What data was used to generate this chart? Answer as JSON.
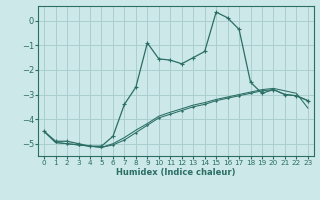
{
  "xlabel": "Humidex (Indice chaleur)",
  "bg_color": "#cce8e8",
  "grid_color": "#aacece",
  "line_color": "#2a6e64",
  "xlim": [
    -0.5,
    23.5
  ],
  "ylim": [
    -5.5,
    0.6
  ],
  "yticks": [
    0,
    -1,
    -2,
    -3,
    -4,
    -5
  ],
  "xticks": [
    0,
    1,
    2,
    3,
    4,
    5,
    6,
    7,
    8,
    9,
    10,
    11,
    12,
    13,
    14,
    15,
    16,
    17,
    18,
    19,
    20,
    21,
    22,
    23
  ],
  "curve1_x": [
    0,
    1,
    2,
    3,
    4,
    5,
    6,
    7,
    8,
    9,
    10,
    11,
    12,
    13,
    14,
    15,
    16,
    17,
    18,
    19,
    20,
    21,
    22,
    23
  ],
  "curve1_y": [
    -4.5,
    -4.9,
    -4.9,
    -5.0,
    -5.1,
    -5.1,
    -4.7,
    -3.4,
    -2.7,
    -0.9,
    -1.55,
    -1.6,
    -1.75,
    -1.5,
    -1.25,
    0.35,
    0.12,
    -0.35,
    -2.5,
    -2.95,
    -2.8,
    -3.0,
    -3.05,
    -3.25
  ],
  "curve2_x": [
    0,
    1,
    2,
    3,
    4,
    5,
    6,
    7,
    8,
    9,
    10,
    11,
    12,
    13,
    14,
    15,
    16,
    17,
    18,
    19,
    20,
    21,
    22,
    23
  ],
  "curve2_y": [
    -4.5,
    -4.95,
    -5.0,
    -5.05,
    -5.1,
    -5.15,
    -5.05,
    -4.85,
    -4.55,
    -4.25,
    -3.95,
    -3.8,
    -3.65,
    -3.5,
    -3.4,
    -3.25,
    -3.15,
    -3.05,
    -2.95,
    -2.85,
    -2.8,
    -3.0,
    -3.05,
    -3.25
  ],
  "curve3_x": [
    0,
    1,
    2,
    3,
    4,
    5,
    6,
    7,
    8,
    9,
    10,
    11,
    12,
    13,
    14,
    15,
    16,
    17,
    18,
    19,
    20,
    21,
    22,
    23
  ],
  "curve3_y": [
    -4.5,
    -4.95,
    -5.0,
    -5.05,
    -5.1,
    -5.15,
    -5.0,
    -4.75,
    -4.45,
    -4.18,
    -3.88,
    -3.72,
    -3.58,
    -3.43,
    -3.33,
    -3.2,
    -3.1,
    -3.0,
    -2.9,
    -2.8,
    -2.75,
    -2.85,
    -2.95,
    -3.55
  ]
}
